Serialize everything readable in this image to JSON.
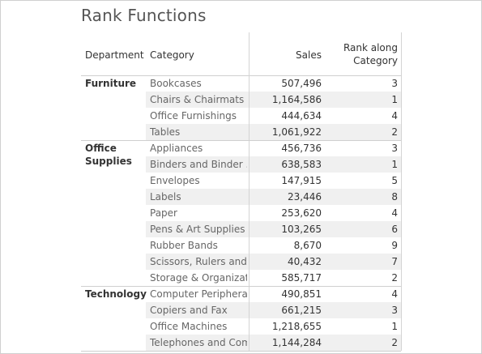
{
  "title": "Rank Functions",
  "headers": {
    "department": "Department",
    "category": "Category",
    "sales": "Sales",
    "rank_line1": "Rank along",
    "rank_line2": "Category"
  },
  "departments": [
    {
      "name_lines": [
        "Furniture"
      ],
      "rows": [
        {
          "category": "Bookcases",
          "sales": "507,496",
          "rank": "3"
        },
        {
          "category": "Chairs & Chairmats",
          "sales": "1,164,586",
          "rank": "1"
        },
        {
          "category": "Office Furnishings",
          "sales": "444,634",
          "rank": "4"
        },
        {
          "category": "Tables",
          "sales": "1,061,922",
          "rank": "2"
        }
      ]
    },
    {
      "name_lines": [
        "Office",
        "Supplies"
      ],
      "rows": [
        {
          "category": "Appliances",
          "sales": "456,736",
          "rank": "3"
        },
        {
          "category": "Binders and Binder ..",
          "sales": "638,583",
          "rank": "1"
        },
        {
          "category": "Envelopes",
          "sales": "147,915",
          "rank": "5"
        },
        {
          "category": "Labels",
          "sales": "23,446",
          "rank": "8"
        },
        {
          "category": "Paper",
          "sales": "253,620",
          "rank": "4"
        },
        {
          "category": "Pens & Art Supplies",
          "sales": "103,265",
          "rank": "6"
        },
        {
          "category": "Rubber Bands",
          "sales": "8,670",
          "rank": "9"
        },
        {
          "category": "Scissors, Rulers and ..",
          "sales": "40,432",
          "rank": "7"
        },
        {
          "category": "Storage & Organizat..",
          "sales": "585,717",
          "rank": "2"
        }
      ]
    },
    {
      "name_lines": [
        "Technology"
      ],
      "rows": [
        {
          "category": "Computer Periphera..",
          "sales": "490,851",
          "rank": "4"
        },
        {
          "category": "Copiers and Fax",
          "sales": "661,215",
          "rank": "3"
        },
        {
          "category": "Office Machines",
          "sales": "1,218,655",
          "rank": "1"
        },
        {
          "category": "Telephones and Com..",
          "sales": "1,144,284",
          "rank": "2"
        }
      ]
    }
  ]
}
